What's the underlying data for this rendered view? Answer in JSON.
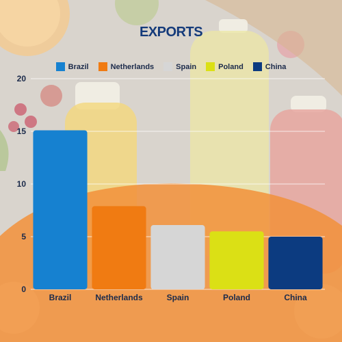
{
  "chart_data": {
    "type": "bar",
    "title": "EXPORTS",
    "categories": [
      "Brazil",
      "Netherlands",
      "Spain",
      "Poland",
      "China"
    ],
    "values": [
      15.1,
      7.9,
      6.1,
      5.5,
      5.0
    ],
    "colors": [
      "#1681d0",
      "#f07b12",
      "#d6d6d6",
      "#dbe015",
      "#0c3b80"
    ],
    "legend": [
      "Brazil",
      "Netherlands",
      "Spain",
      "Poland",
      "China"
    ],
    "legend_position": "top",
    "ylim": [
      0,
      20
    ],
    "yticks": [
      0,
      5,
      10,
      15,
      20
    ],
    "grid": true,
    "xlabel": "",
    "ylabel": ""
  },
  "theme": {
    "title_color": "#143a7a",
    "background_accent": "#f2913a"
  }
}
